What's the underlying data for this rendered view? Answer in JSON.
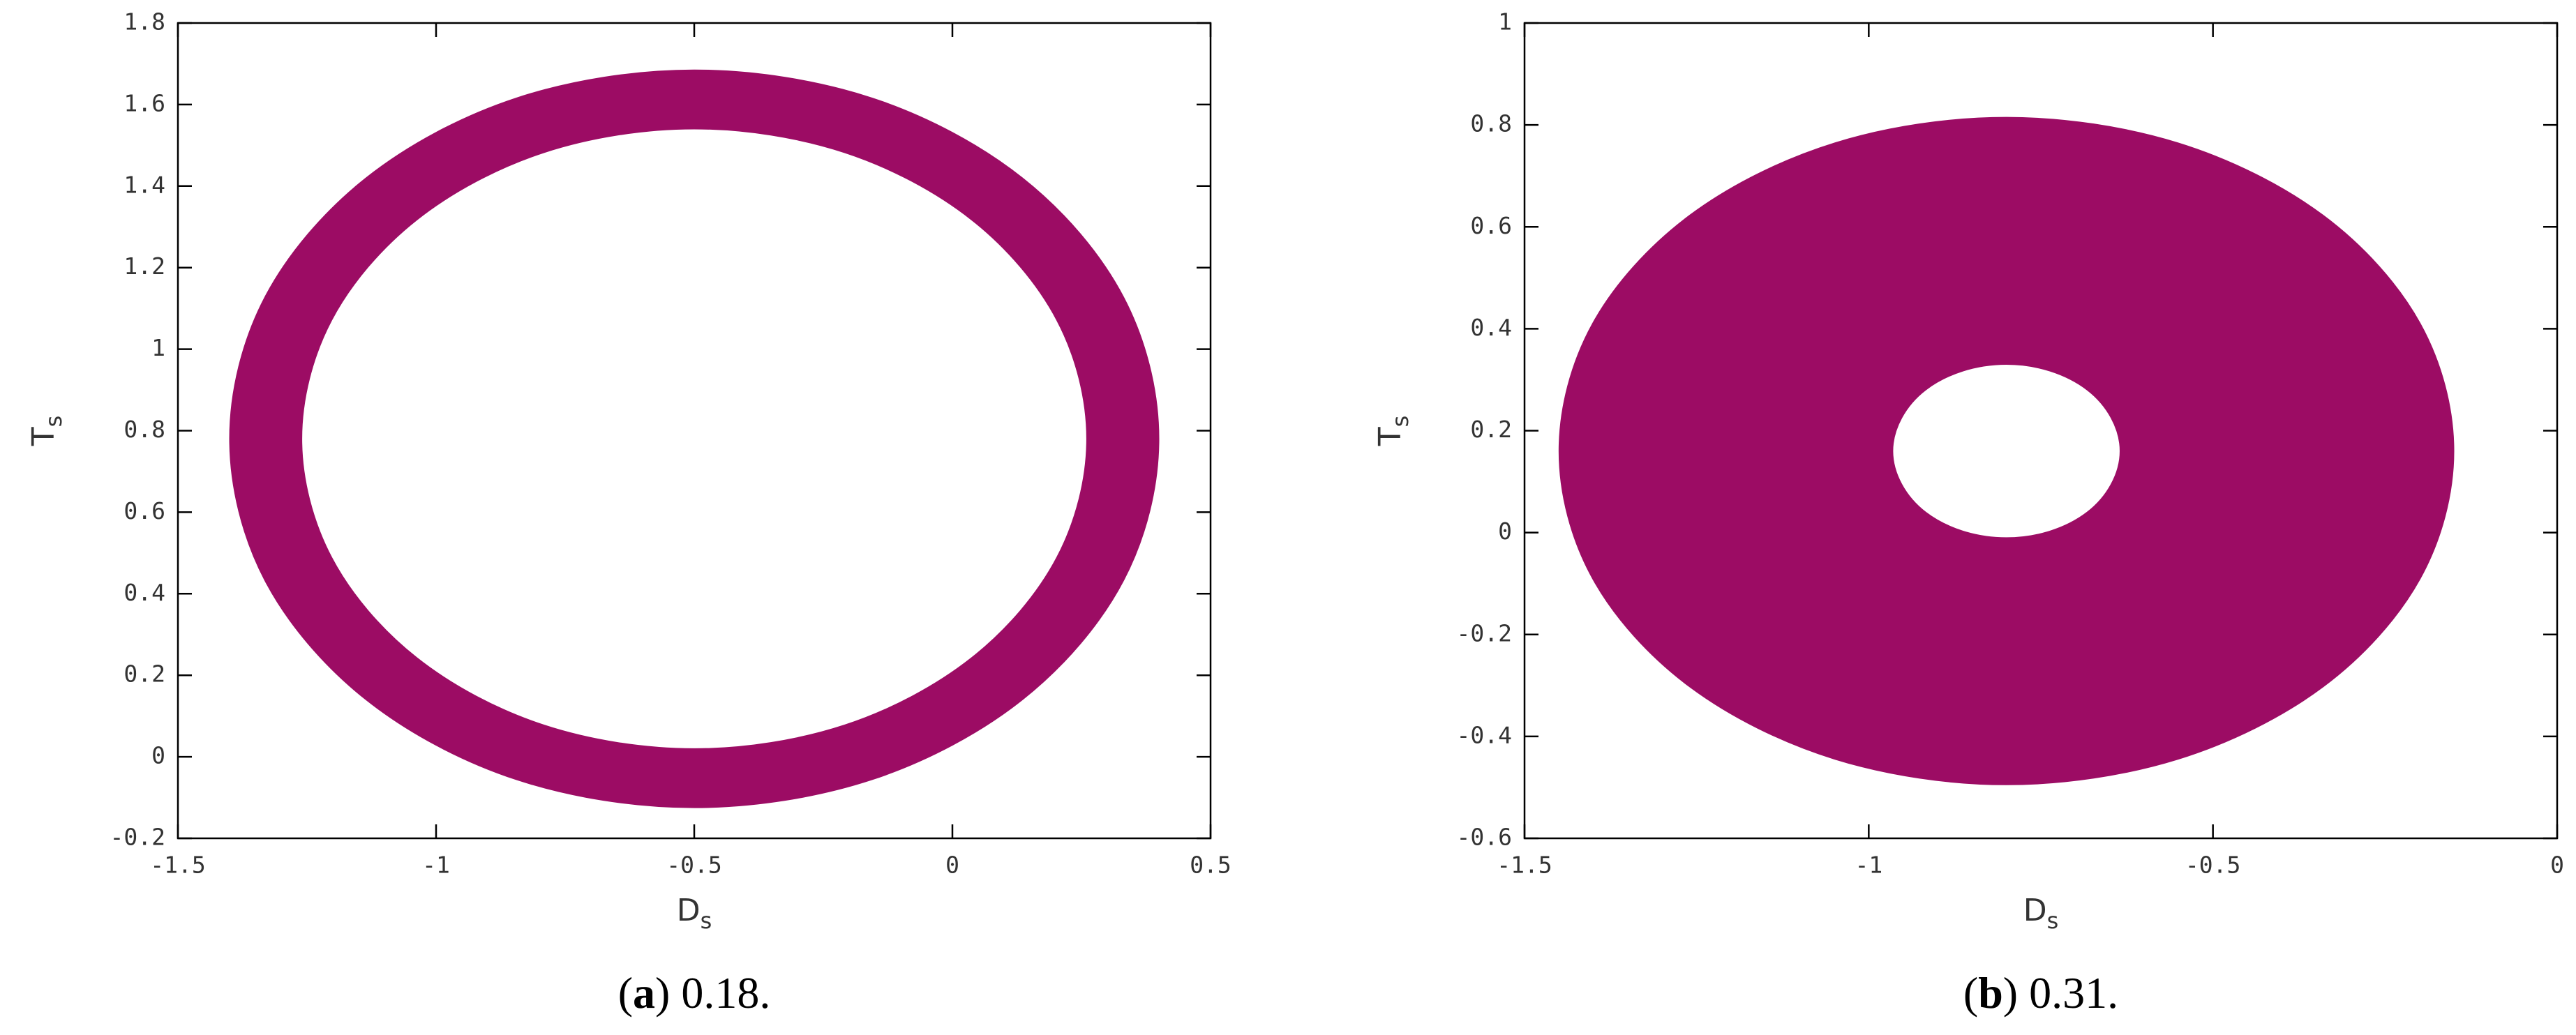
{
  "chart_data": [
    {
      "type": "ring",
      "xlabel": [
        "D",
        "s"
      ],
      "ylabel": [
        "T",
        "s"
      ],
      "caption": [
        "(",
        "a",
        ") 0.18."
      ],
      "xlim": [
        -1.5,
        0.5
      ],
      "xticks": [
        -1.5,
        -1,
        -0.5,
        0,
        0.5
      ],
      "ylim": [
        -0.2,
        1.8
      ],
      "yticks": [
        -0.2,
        0,
        0.2,
        0.4,
        0.6,
        0.8,
        1,
        1.2,
        1.4,
        1.6,
        1.8
      ],
      "series": [
        {
          "color": "#9c0c64",
          "x": [
            0.4,
            0.332,
            0.136,
            -0.155,
            -0.5,
            -0.845,
            -1.136,
            -1.332,
            -1.4,
            -1.332,
            -1.136,
            -0.845,
            -0.5,
            -0.155,
            0.136,
            0.332,
            null,
            0.26,
            0.202,
            0.037,
            -0.209,
            -0.5,
            -0.791,
            -1.037,
            -1.202,
            -1.26,
            -1.202,
            -1.037,
            -0.791,
            -0.5,
            -0.209,
            0.037,
            0.202
          ],
          "values": [
            0.78,
            1.127,
            1.42,
            1.616,
            1.685,
            1.616,
            1.42,
            1.127,
            0.78,
            0.433,
            0.14,
            -0.056,
            -0.125,
            -0.056,
            0.14,
            0.433,
            null,
            0.78,
            1.071,
            1.317,
            1.482,
            1.54,
            1.482,
            1.317,
            1.071,
            0.78,
            0.489,
            0.243,
            0.078,
            0.02,
            0.078,
            0.243,
            0.489
          ]
        }
      ]
    },
    {
      "type": "ring",
      "xlabel": [
        "D",
        "s"
      ],
      "ylabel": [
        "T",
        "s"
      ],
      "caption": [
        "(",
        "b",
        ") 0.31."
      ],
      "xlim": [
        -1.5,
        0
      ],
      "xticks": [
        -1.5,
        -1,
        -0.5,
        0
      ],
      "ylim": [
        -0.6,
        1
      ],
      "yticks": [
        -0.6,
        -0.4,
        -0.2,
        0,
        0.2,
        0.4,
        0.6,
        0.8,
        1
      ],
      "series": [
        {
          "color": "#9c0c64",
          "x": [
            -0.15,
            -0.199,
            -0.34,
            -0.551,
            -0.8,
            -1.049,
            -1.26,
            -1.401,
            -1.45,
            -1.401,
            -1.26,
            -1.049,
            -0.8,
            -0.551,
            -0.34,
            -0.199,
            null,
            -0.635,
            -0.648,
            -0.683,
            -0.737,
            -0.8,
            -0.863,
            -0.917,
            -0.952,
            -0.965,
            -0.952,
            -0.917,
            -0.863,
            -0.8,
            -0.737,
            -0.683,
            -0.648
          ],
          "values": [
            0.16,
            0.411,
            0.623,
            0.765,
            0.815,
            0.765,
            0.623,
            0.411,
            0.16,
            -0.091,
            -0.303,
            -0.445,
            -0.495,
            -0.445,
            -0.303,
            -0.091,
            null,
            0.16,
            0.225,
            0.28,
            0.317,
            0.33,
            0.317,
            0.28,
            0.225,
            0.16,
            0.095,
            0.04,
            0.003,
            -0.01,
            0.003,
            0.04,
            0.095
          ]
        }
      ]
    }
  ]
}
